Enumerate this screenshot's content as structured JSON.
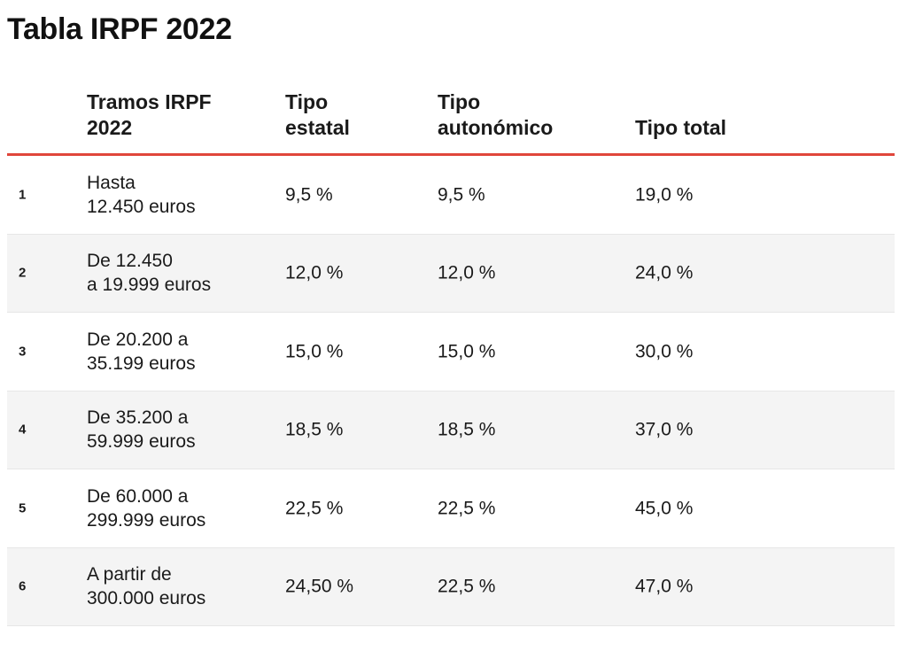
{
  "title": "Tabla IRPF 2022",
  "accent_color": "#e0463b",
  "chart_data": {
    "type": "table",
    "title": "Tabla IRPF 2022",
    "columns": [
      "",
      "Tramos IRPF\n2022",
      "Tipo\nestatal",
      "Tipo\nautonómico",
      "Tipo total"
    ],
    "rows": [
      {
        "n": "1",
        "tramo": "Hasta\n12.450 euros",
        "estatal": "9,5 %",
        "autonomico": "9,5 %",
        "total": "19,0 %"
      },
      {
        "n": "2",
        "tramo": "De 12.450\na 19.999 euros",
        "estatal": "12,0 %",
        "autonomico": "12,0 %",
        "total": "24,0 %"
      },
      {
        "n": "3",
        "tramo": "De 20.200 a\n35.199 euros",
        "estatal": "15,0 %",
        "autonomico": "15,0 %",
        "total": "30,0 %"
      },
      {
        "n": "4",
        "tramo": "De 35.200 a\n59.999 euros",
        "estatal": "18,5 %",
        "autonomico": "18,5 %",
        "total": "37,0 %"
      },
      {
        "n": "5",
        "tramo": "De 60.000 a\n299.999 euros",
        "estatal": "22,5 %",
        "autonomico": "22,5 %",
        "total": "45,0 %"
      },
      {
        "n": "6",
        "tramo": "A partir de\n300.000 euros",
        "estatal": "24,50 %",
        "autonomico": "22,5 %",
        "total": "47,0 %"
      }
    ]
  }
}
